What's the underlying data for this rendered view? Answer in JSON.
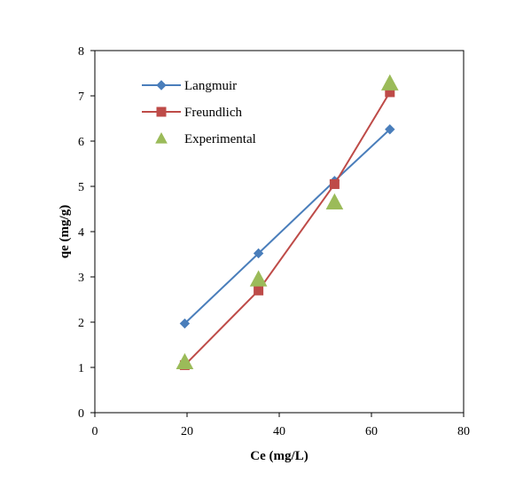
{
  "chart_data": {
    "type": "scatter",
    "xlabel": "Ce (mg/L)",
    "ylabel": "qe (mg/g)",
    "xlim": [
      0,
      80
    ],
    "ylim": [
      0,
      8
    ],
    "xticks": [
      0,
      20,
      40,
      60,
      80
    ],
    "yticks": [
      0,
      1,
      2,
      3,
      4,
      5,
      6,
      7,
      8
    ],
    "grid": false,
    "legend_position": "top-left",
    "series": [
      {
        "name": "Langmuir",
        "marker": "diamond",
        "line": true,
        "color": "#4A7EBB",
        "points": [
          [
            19.5,
            1.97
          ],
          [
            35.5,
            3.52
          ],
          [
            52.0,
            5.12
          ],
          [
            64.0,
            6.26
          ]
        ]
      },
      {
        "name": "Freundlich",
        "marker": "square",
        "line": true,
        "color": "#BE4B48",
        "points": [
          [
            19.5,
            1.05
          ],
          [
            35.5,
            2.7
          ],
          [
            52.0,
            5.05
          ],
          [
            64.0,
            7.08
          ]
        ]
      },
      {
        "name": "Experimental",
        "marker": "triangle",
        "line": false,
        "color": "#9BBB59",
        "points": [
          [
            19.5,
            1.12
          ],
          [
            35.5,
            2.95
          ],
          [
            52.0,
            4.65
          ],
          [
            64.0,
            7.28
          ]
        ]
      }
    ]
  }
}
